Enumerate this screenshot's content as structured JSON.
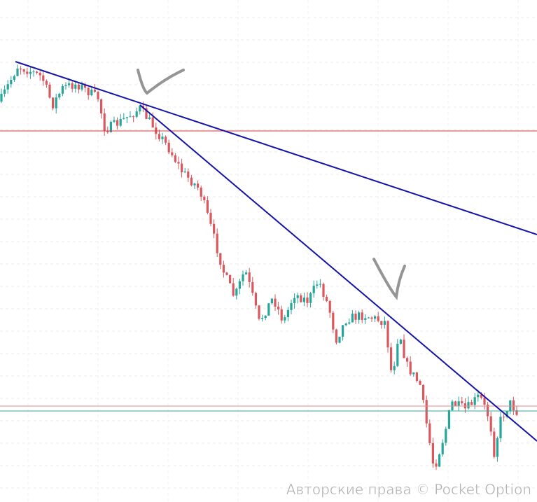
{
  "watermark": "Авторские права © Pocket Option"
}
